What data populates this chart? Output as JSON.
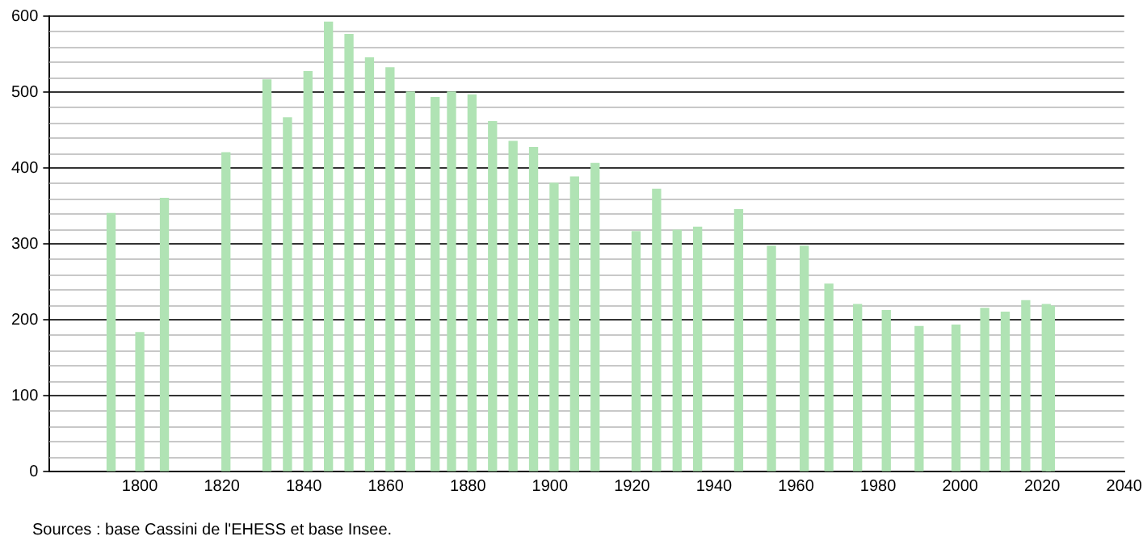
{
  "chart_data": {
    "type": "bar",
    "x": [
      1793,
      1800,
      1806,
      1821,
      1831,
      1836,
      1841,
      1846,
      1851,
      1856,
      1861,
      1866,
      1872,
      1876,
      1881,
      1886,
      1891,
      1896,
      1901,
      1906,
      1911,
      1921,
      1926,
      1931,
      1936,
      1946,
      1954,
      1962,
      1968,
      1975,
      1982,
      1990,
      1999,
      2006,
      2011,
      2016,
      2021,
      2022
    ],
    "values": [
      340,
      183,
      360,
      420,
      516,
      466,
      527,
      592,
      576,
      545,
      532,
      500,
      493,
      500,
      496,
      461,
      435,
      427,
      380,
      388,
      406,
      316,
      372,
      318,
      322,
      345,
      297,
      297,
      247,
      220,
      212,
      191,
      193,
      215,
      210,
      225,
      220,
      218
    ],
    "color": "#b0e3b4",
    "xlim": [
      1778,
      2040
    ],
    "xticks": [
      1800,
      1820,
      1840,
      1860,
      1880,
      1900,
      1920,
      1940,
      1960,
      1980,
      2000,
      2020,
      2040
    ],
    "ylim": [
      0,
      600
    ],
    "yticks": [
      0,
      100,
      200,
      300,
      400,
      500,
      600
    ],
    "grid": "y",
    "annotations": [
      "Sources : base Cassini de l'EHESS et base Insee."
    ]
  }
}
